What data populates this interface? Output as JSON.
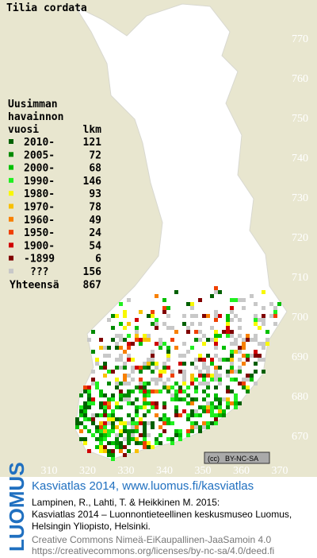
{
  "title": "Tilia cordata",
  "legend": {
    "header": [
      "Uusimman",
      "havainnon"
    ],
    "col_period": "vuosi",
    "col_count": "lkm",
    "rows": [
      {
        "period": "2010-",
        "count": "121",
        "color": "#006000"
      },
      {
        "period": "2005-",
        "count": "72",
        "color": "#008a00"
      },
      {
        "period": "2000-",
        "count": "68",
        "color": "#00c000"
      },
      {
        "period": "1990-",
        "count": "146",
        "color": "#20f020"
      },
      {
        "period": "1980-",
        "count": "93",
        "color": "#f8f800"
      },
      {
        "period": "1970-",
        "count": "78",
        "color": "#f8c000"
      },
      {
        "period": "1960-",
        "count": "49",
        "color": "#f88000"
      },
      {
        "period": "1950-",
        "count": "24",
        "color": "#f04000"
      },
      {
        "period": "1900-",
        "count": "54",
        "color": "#d00000"
      },
      {
        "period": "-1899",
        "count": "6",
        "color": "#800000"
      },
      {
        "period": "???",
        "count": "156",
        "color": "#c8c8c8"
      }
    ],
    "total_label": "Yhteensä",
    "total": "867"
  },
  "yticks": [
    770,
    760,
    750,
    740,
    730,
    720,
    710,
    700,
    690,
    680,
    670
  ],
  "xticks": [
    310,
    320,
    330,
    340,
    350,
    360,
    370
  ],
  "license_badge": {
    "cc": "(cc)",
    "terms": "BY-NC-SA"
  },
  "footer": {
    "brand": "LUOMUS",
    "headline": "Kasviatlas 2014, www.luomus.fi/kasviatlas",
    "citation": [
      "Lampinen, R., Lahti, T. & Heikkinen M. 2015:",
      "Kasviatlas 2014 – Luonnontieteellinen keskusmuseo Luomus,",
      "Helsingin Yliopisto, Helsinki."
    ],
    "license": [
      "Creative Commons Nimeä-EiKaupallinen-JaaSamoin 4.0",
      "https://creativecommons.org/licenses/by-nc-sa/4.0/deed.fi"
    ]
  }
}
